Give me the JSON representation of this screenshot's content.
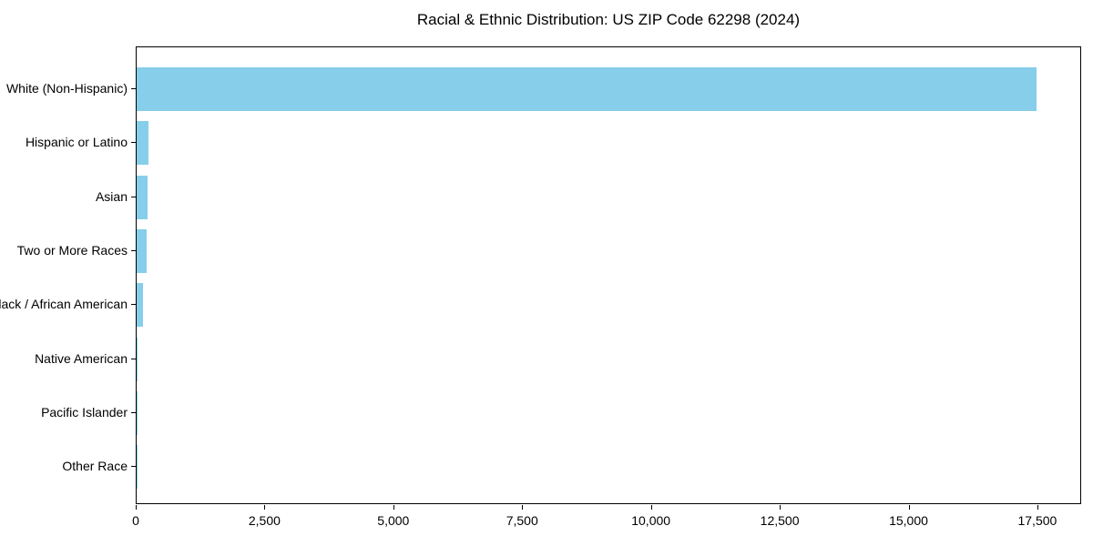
{
  "chart_data": {
    "type": "bar",
    "orientation": "horizontal",
    "title": "Racial & Ethnic Distribution: US ZIP Code 62298 (2024)",
    "categories": [
      "White (Non-Hispanic)",
      "Hispanic or Latino",
      "Asian",
      "Two or More Races",
      "Black / African American",
      "Native American",
      "Pacific Islander",
      "Other Race"
    ],
    "values": [
      17470,
      225,
      205,
      190,
      120,
      25,
      5,
      8
    ],
    "bar_color": "#87CEEB",
    "axis_color": "#000000",
    "background_color": "#ffffff",
    "xlim": [
      0,
      18350
    ],
    "xticks": [
      0,
      2500,
      5000,
      7500,
      10000,
      12500,
      15000,
      17500
    ],
    "xtick_labels": [
      "0",
      "2,500",
      "5,000",
      "7,500",
      "10,000",
      "12,500",
      "15,000",
      "17,500"
    ],
    "xlabel": "",
    "ylabel": "",
    "grid": false,
    "legend": null
  }
}
